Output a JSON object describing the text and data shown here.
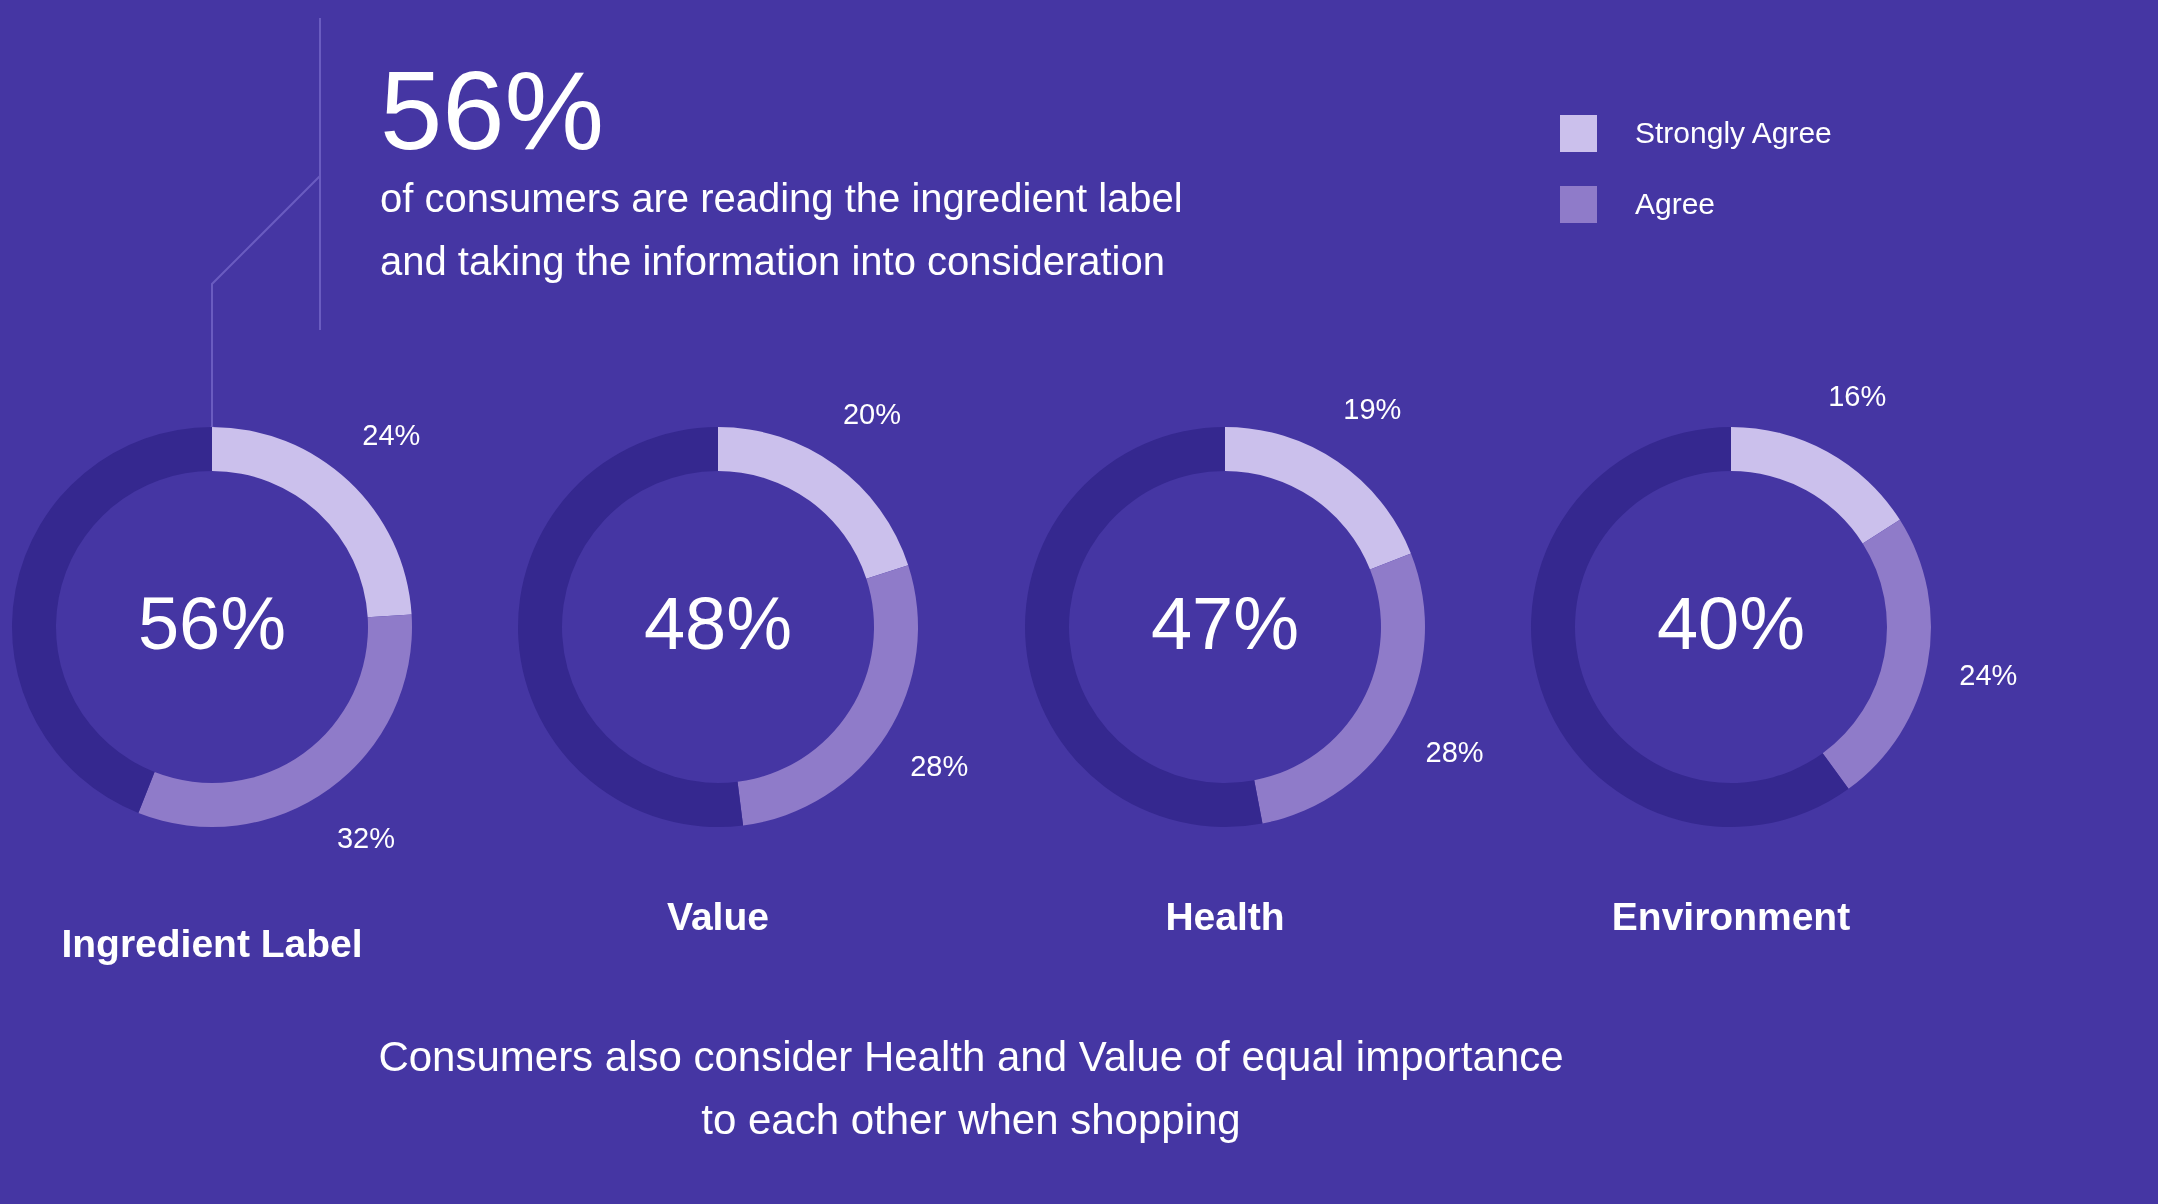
{
  "chart_data": [
    {
      "type": "other",
      "title": "56%",
      "subtitle": "of consumers are reading the ingredient label and taking the information into consideration"
    },
    {
      "type": "donut",
      "xlabel": "Ingredient Label",
      "categories": [
        null,
        null,
        null
      ],
      "values": [
        24,
        32,
        44
      ],
      "colors": [
        "#cbc0ec",
        "#8f7bc9",
        "#35288f"
      ],
      "value_labels": [
        "24%",
        "32%",
        null
      ],
      "annotations": [
        "56%"
      ]
    },
    {
      "type": "donut",
      "xlabel": "Value",
      "categories": [
        null,
        null,
        null
      ],
      "values": [
        20,
        28,
        52
      ],
      "colors": [
        "#cbc0ec",
        "#8f7bc9",
        "#35288f"
      ],
      "value_labels": [
        "20%",
        "28%",
        null
      ],
      "annotations": [
        "48%"
      ]
    },
    {
      "type": "donut",
      "xlabel": "Health",
      "categories": [
        null,
        null,
        null
      ],
      "values": [
        19,
        28,
        53
      ],
      "colors": [
        "#cbc0ec",
        "#8f7bc9",
        "#35288f"
      ],
      "value_labels": [
        "19%",
        "28%",
        null
      ],
      "annotations": [
        "47%"
      ]
    },
    {
      "type": "donut",
      "xlabel": "Environment",
      "categories": [
        "Strongly Agree",
        "Agree",
        null
      ],
      "values": [
        16,
        24,
        60
      ],
      "colors": [
        "#cbc0ec",
        "#8f7bc9",
        "#35288f"
      ],
      "value_labels": [
        "16%",
        "24%",
        null
      ],
      "annotations": [
        "40%"
      ],
      "legend": "top"
    },
    {
      "type": "other",
      "annotations": [
        "Consumers also consider Health and Value of equal importance to each other when shopping"
      ]
    }
  ]
}
